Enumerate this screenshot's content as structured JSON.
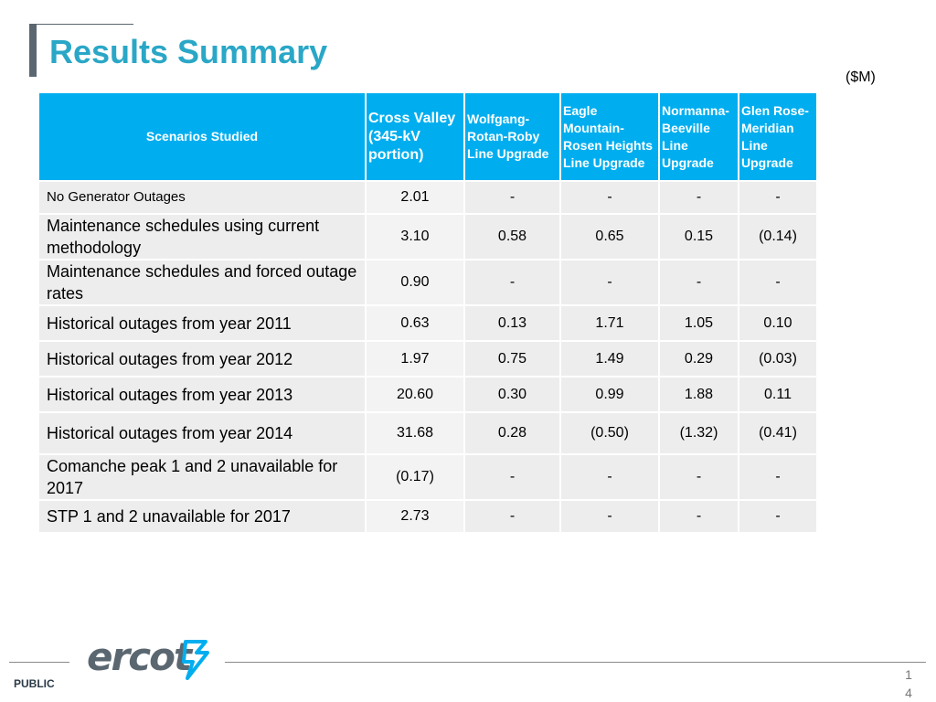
{
  "header": {
    "title": "Results Summary",
    "unit": "($M)"
  },
  "table": {
    "columns": [
      "Scenarios Studied",
      "Cross Valley (345-kV portion)",
      "Wolfgang-Rotan-Roby Line Upgrade",
      "Eagle Mountain-Rosen Heights Line Upgrade",
      "Normanna-Beeville Line Upgrade",
      "Glen Rose-Meridian Line Upgrade"
    ],
    "rows": [
      {
        "label": "No Generator Outages",
        "values": [
          "2.01",
          "-",
          "-",
          "-",
          "-"
        ]
      },
      {
        "label": "Maintenance schedules using current methodology",
        "values": [
          "3.10",
          "0.58",
          "0.65",
          "0.15",
          "(0.14)"
        ]
      },
      {
        "label": "Maintenance schedules and forced outage rates",
        "values": [
          "0.90",
          "-",
          "-",
          "-",
          "-"
        ]
      },
      {
        "label": "Historical outages from year 2011",
        "values": [
          "0.63",
          "0.13",
          "1.71",
          "1.05",
          "0.10"
        ]
      },
      {
        "label": "Historical outages from year 2012",
        "values": [
          "1.97",
          "0.75",
          "1.49",
          "0.29",
          "(0.03)"
        ]
      },
      {
        "label": "Historical outages from year 2013",
        "values": [
          "20.60",
          "0.30",
          "0.99",
          "1.88",
          "0.11"
        ]
      },
      {
        "label": "Historical outages from year 2014",
        "values": [
          "31.68",
          "0.28",
          "(0.50)",
          "(1.32)",
          "(0.41)"
        ]
      },
      {
        "label": "Comanche peak 1 and 2 unavailable for 2017",
        "values": [
          "(0.17)",
          "-",
          "-",
          "-",
          "-"
        ]
      },
      {
        "label": "STP 1 and 2 unavailable for 2017",
        "values": [
          "2.73",
          "-",
          "-",
          "-",
          "-"
        ]
      }
    ]
  },
  "footer": {
    "logo_text": "ercot",
    "classification": "PUBLIC",
    "page_number": "14"
  },
  "colors": {
    "title": "#2aa7c7",
    "header_bg": "#00aeef",
    "row_bg": "#ededed",
    "logo": "#5b6770",
    "logo_accent": "#00aeef"
  }
}
